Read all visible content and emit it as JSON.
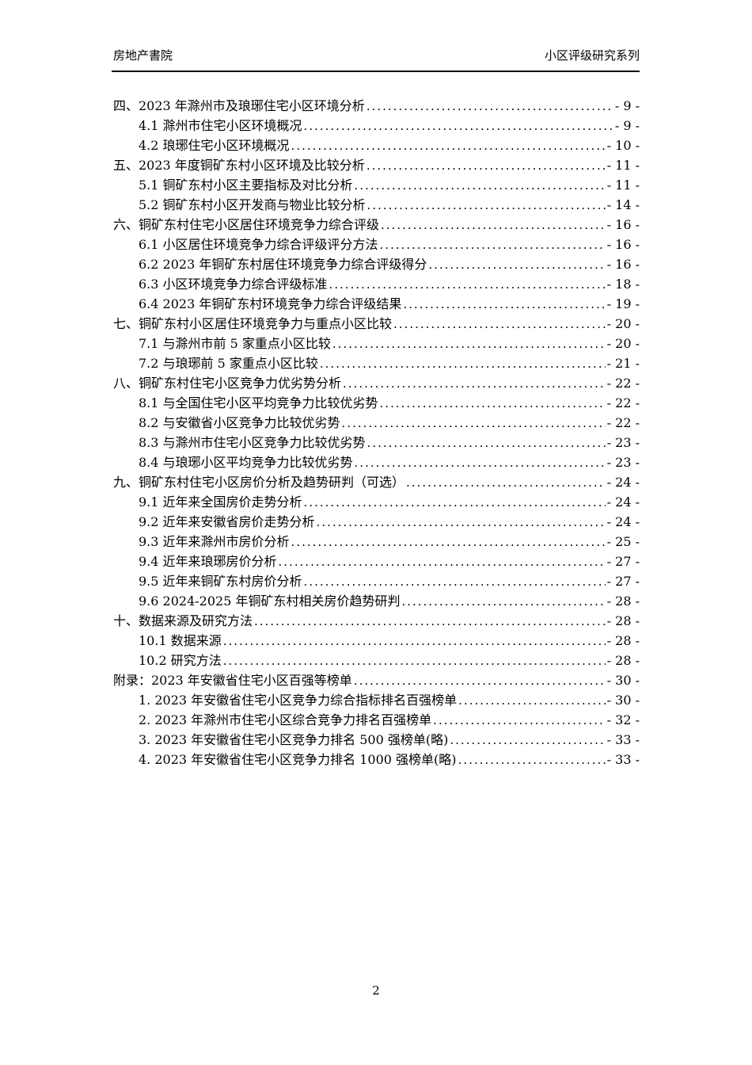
{
  "header": {
    "left": "房地产書院",
    "right": "小区评级研究系列"
  },
  "toc": {
    "entries": [
      {
        "title": "四、2023 年滁州市及琅琊住宅小区环境分析",
        "page": "- 9 -",
        "level": 0
      },
      {
        "title": "4.1 滁州市住宅小区环境概况",
        "page": "- 9 -",
        "level": 1
      },
      {
        "title": "4.2 琅琊住宅小区环境概况",
        "page": "- 10 -",
        "level": 1
      },
      {
        "title": "五、2023 年度铜矿东村小区环境及比较分析",
        "page": "- 11 -",
        "level": 0
      },
      {
        "title": "5.1 铜矿东村小区主要指标及对比分析",
        "page": "- 11 -",
        "level": 1
      },
      {
        "title": "5.2 铜矿东村小区开发商与物业比较分析",
        "page": "- 14 -",
        "level": 1
      },
      {
        "title": "六、铜矿东村住宅小区居住环境竞争力综合评级",
        "page": "- 16 -",
        "level": 0
      },
      {
        "title": "6.1 小区居住环境竞争力综合评级评分方法",
        "page": "- 16 -",
        "level": 1
      },
      {
        "title": "6.2 2023 年铜矿东村居住环境竞争力综合评级得分",
        "page": "- 16 -",
        "level": 1
      },
      {
        "title": "6.3 小区环境竞争力综合评级标准",
        "page": "- 18 -",
        "level": 1
      },
      {
        "title": "6.4 2023 年铜矿东村环境竞争力综合评级结果",
        "page": "- 19 -",
        "level": 1
      },
      {
        "title": "七、铜矿东村小区居住环境竞争力与重点小区比较",
        "page": "- 20 -",
        "level": 0
      },
      {
        "title": "7.1 与滁州市前 5 家重点小区比较",
        "page": "- 20 -",
        "level": 1
      },
      {
        "title": "7.2 与琅琊前 5 家重点小区比较",
        "page": "- 21 -",
        "level": 1
      },
      {
        "title": "八、铜矿东村住宅小区竞争力优劣势分析",
        "page": "- 22 -",
        "level": 0
      },
      {
        "title": "8.1 与全国住宅小区平均竞争力比较优劣势",
        "page": "- 22 -",
        "level": 1
      },
      {
        "title": "8.2 与安徽省小区竞争力比较优劣势",
        "page": "- 22 -",
        "level": 1
      },
      {
        "title": "8.3 与滁州市住宅小区竞争力比较优劣势",
        "page": "- 23 -",
        "level": 1
      },
      {
        "title": "8.4 与琅琊小区平均竞争力比较优劣势",
        "page": "- 23 -",
        "level": 1
      },
      {
        "title": "九、铜矿东村住宅小区房价分析及趋势研判（可选）",
        "page": "- 24 -",
        "level": 0
      },
      {
        "title": "9.1 近年来全国房价走势分析",
        "page": "- 24 -",
        "level": 1
      },
      {
        "title": "9.2 近年来安徽省房价走势分析",
        "page": "- 24 -",
        "level": 1
      },
      {
        "title": "9.3 近年来滁州市房价分析",
        "page": "- 25 -",
        "level": 1
      },
      {
        "title": "9.4 近年来琅琊房价分析",
        "page": "- 27 -",
        "level": 1
      },
      {
        "title": "9.5 近年来铜矿东村房价分析",
        "page": "- 27 -",
        "level": 1
      },
      {
        "title": "9.6 2024-2025 年铜矿东村相关房价趋势研判",
        "page": "- 28 -",
        "level": 1
      },
      {
        "title": "十、数据来源及研究方法",
        "page": "- 28 -",
        "level": 0
      },
      {
        "title": "10.1 数据来源",
        "page": "- 28 -",
        "level": 1
      },
      {
        "title": "10.2 研究方法",
        "page": "- 28 -",
        "level": 1
      },
      {
        "title": "附录：2023 年安徽省住宅小区百强等榜单",
        "page": "- 30 -",
        "level": 0
      },
      {
        "title": "1. 2023 年安徽省住宅小区竞争力综合指标排名百强榜单",
        "page": "- 30 -",
        "level": 1
      },
      {
        "title": "2. 2023 年滁州市住宅小区综合竞争力排名百强榜单",
        "page": "- 32 -",
        "level": 1
      },
      {
        "title": "3. 2023 年安徽省住宅小区竞争力排名 500 强榜单(略)",
        "page": "- 33 -",
        "level": 1
      },
      {
        "title": "4. 2023 年安徽省住宅小区竞争力排名 1000 强榜单(略)",
        "page": "- 33 -",
        "level": 1
      }
    ]
  },
  "footer": {
    "page_number": "2"
  }
}
